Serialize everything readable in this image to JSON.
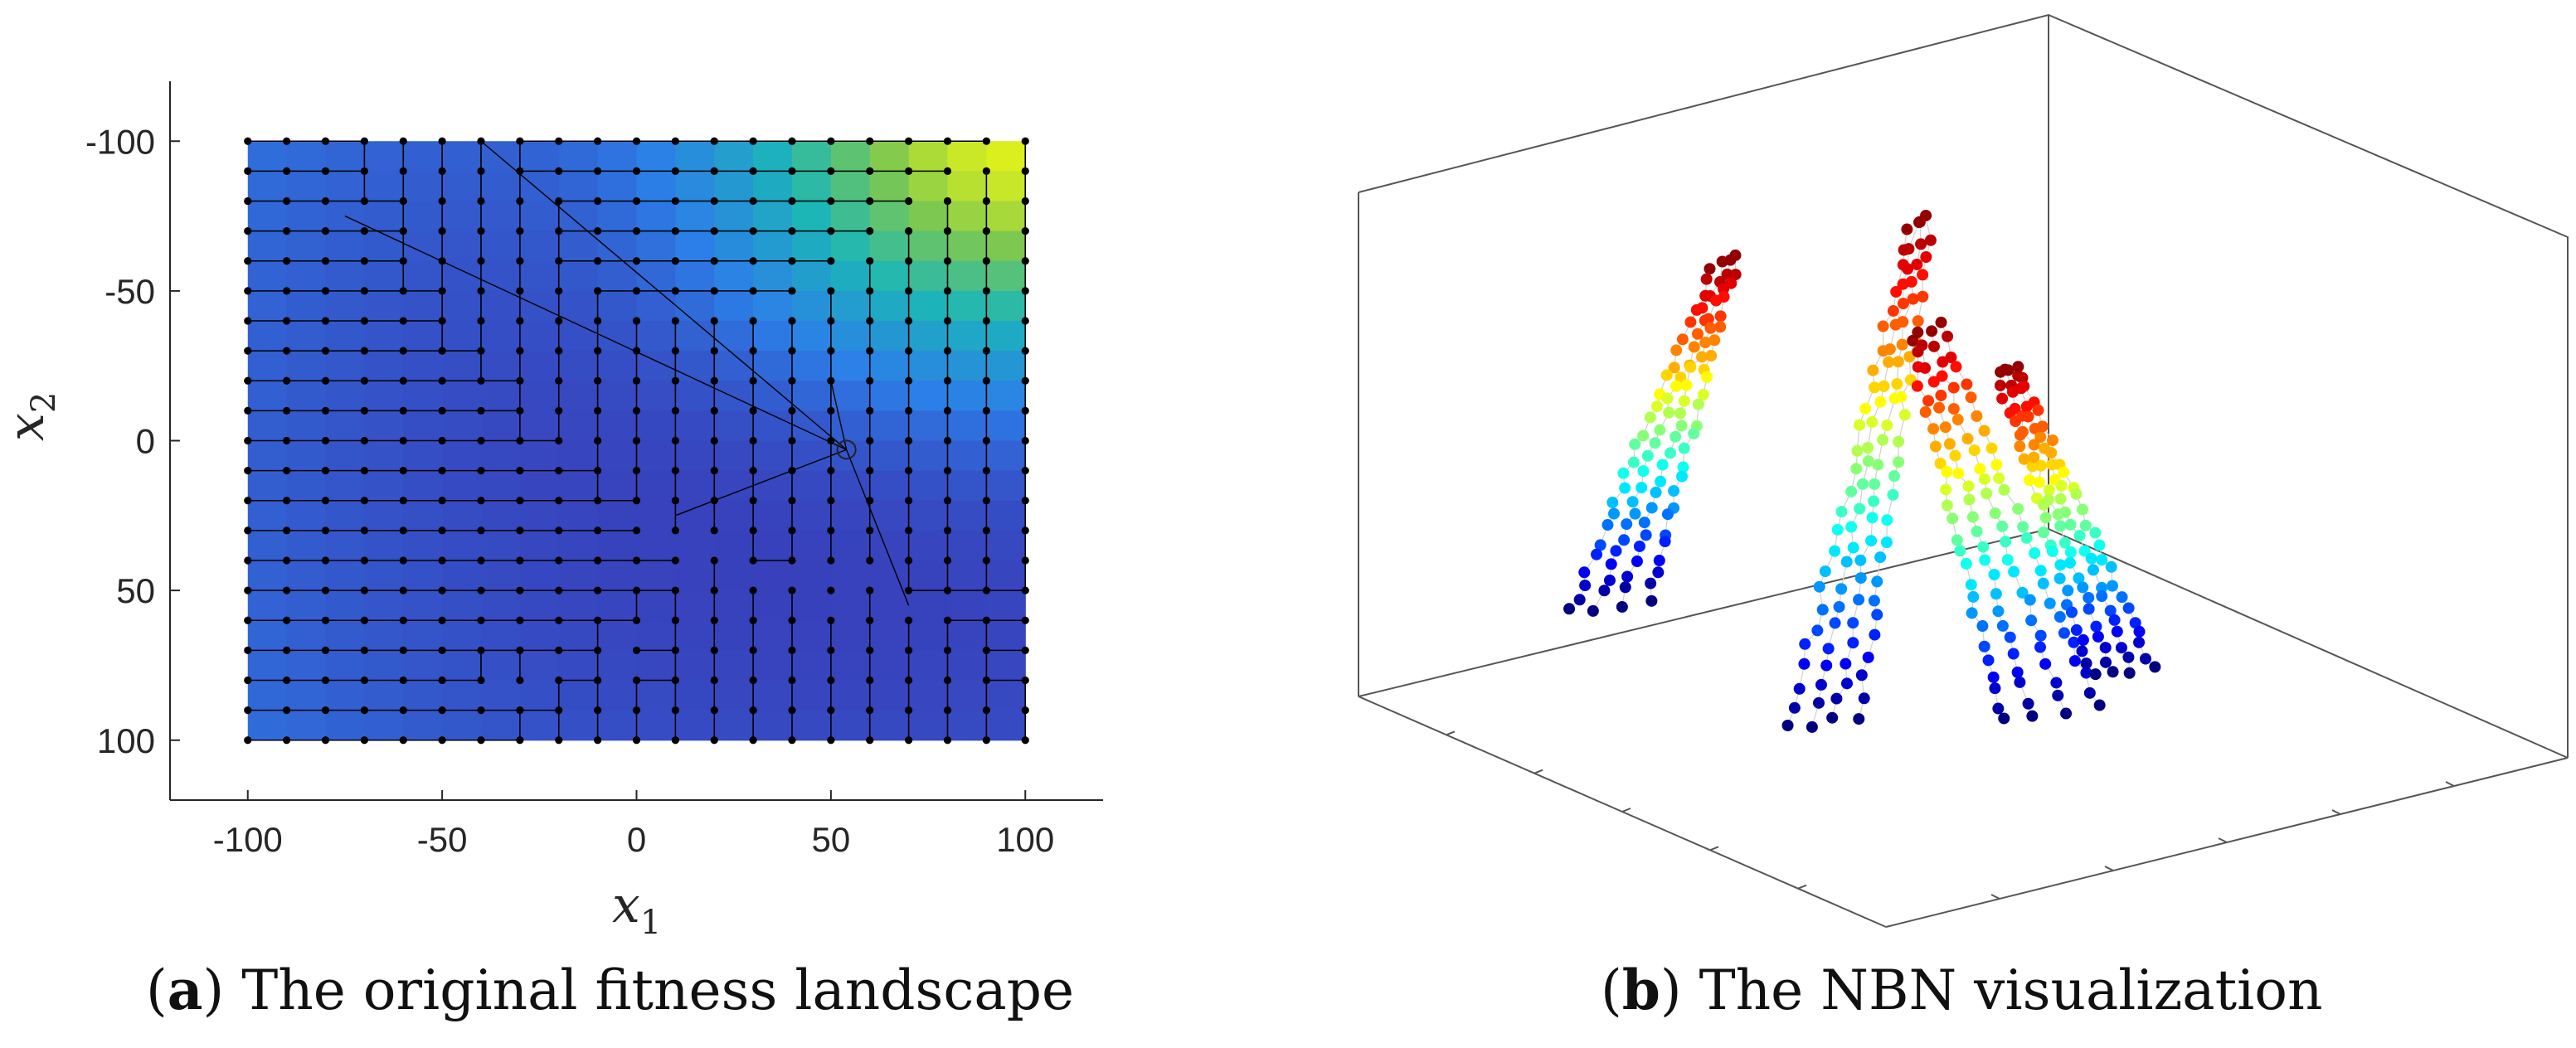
{
  "chart_data": [
    {
      "type": "heatmap",
      "title": "",
      "xlabel": "x",
      "xlabel_sub": "1",
      "ylabel": "x",
      "ylabel_sub": "2",
      "xlim": [
        -120,
        120
      ],
      "ylim": [
        -120,
        120
      ],
      "y_reversed": true,
      "x_ticks": [
        -100,
        -50,
        0,
        50,
        100
      ],
      "y_ticks": [
        -100,
        -50,
        0,
        50,
        100
      ],
      "x_tick_labels": [
        "-100",
        "-50",
        "0",
        "50",
        "100"
      ],
      "y_tick_labels": [
        "-100",
        "-50",
        "0",
        "50",
        "100"
      ],
      "grid_x_range": [
        -100,
        100
      ],
      "grid_y_range": [
        -100,
        100
      ],
      "grid_step": 10,
      "colormap": "parula",
      "colors": {
        "low": "#3d26a8",
        "mid1": "#2c7fe8",
        "mid2": "#1bb6b8",
        "mid3": "#7dc850",
        "high": "#f9fb0e"
      },
      "minimum_marker": [
        54,
        3
      ],
      "node_color": "#000000",
      "edge_color": "#000000"
    },
    {
      "type": "scatter",
      "title": "",
      "projection": "3d",
      "colormap": "jet",
      "groups": 4,
      "edge_color": "#d0d0d0",
      "box_color": "#555555"
    }
  ],
  "captions": {
    "a": {
      "label": "a",
      "text": " The original fitness landscape"
    },
    "b": {
      "label": "b",
      "text": " The NBN visualization"
    }
  }
}
